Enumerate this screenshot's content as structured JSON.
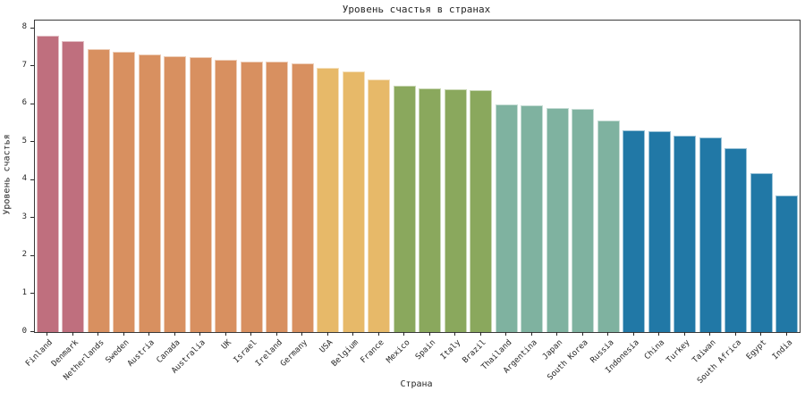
{
  "figure": {
    "background": "#ffffff",
    "axis_color": "#262626",
    "spine_color": "#3a3a3a"
  },
  "chart_data": {
    "type": "bar",
    "title": "Уровень счастья в странах",
    "xlabel": "Страна",
    "ylabel": "Уровень счастья",
    "categories": [
      "Finland",
      "Denmark",
      "Netherlands",
      "Sweden",
      "Austria",
      "Canada",
      "Australia",
      "UK",
      "Israel",
      "Ireland",
      "Germany",
      "USA",
      "Belgium",
      "France",
      "Mexico",
      "Spain",
      "Italy",
      "Brazil",
      "Thailand",
      "Argentina",
      "Japan",
      "South Korea",
      "Russia",
      "Indonesia",
      "China",
      "Turkey",
      "Taiwan",
      "South Africa",
      "Egypt",
      "India"
    ],
    "values": [
      7.8,
      7.65,
      7.45,
      7.38,
      7.3,
      7.26,
      7.23,
      7.16,
      7.13,
      7.11,
      7.08,
      6.95,
      6.86,
      6.66,
      6.48,
      6.42,
      6.4,
      6.37,
      6.0,
      5.98,
      5.9,
      5.88,
      5.57,
      5.3,
      5.28,
      5.16,
      5.13,
      4.84,
      4.18,
      3.6
    ],
    "bar_colors": [
      "#bf6f7e",
      "#bf6f7e",
      "#d89060",
      "#d89060",
      "#d89060",
      "#d89060",
      "#d89060",
      "#d89060",
      "#d89060",
      "#d89060",
      "#d89060",
      "#e7b969",
      "#e7b969",
      "#e7b969",
      "#8aa85d",
      "#8aa85d",
      "#8aa85d",
      "#8aa85d",
      "#7fb2a0",
      "#7fb2a0",
      "#7fb2a0",
      "#7fb2a0",
      "#7fb2a0",
      "#2178a6",
      "#2178a6",
      "#2178a6",
      "#2178a6",
      "#2178a6",
      "#2178a6",
      "#2178a6"
    ],
    "ylim": [
      0,
      8.2
    ],
    "yticks": [
      0,
      1,
      2,
      3,
      4,
      5,
      6,
      7,
      8
    ],
    "x_tick_rotation": 45,
    "grid": false,
    "legend": "none"
  }
}
